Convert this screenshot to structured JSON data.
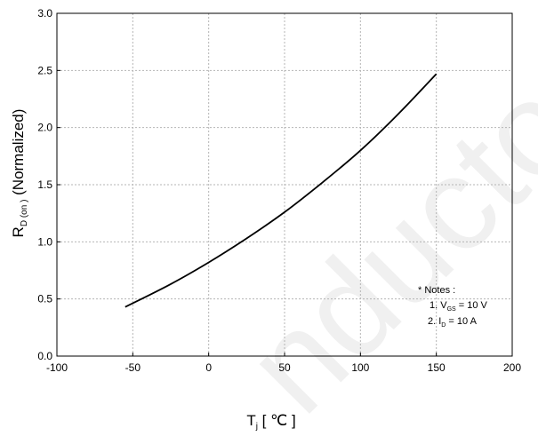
{
  "chart_data": {
    "type": "line",
    "title": "",
    "xlabel": {
      "main": "T",
      "sub": "j",
      "rest": " [ ℃ ]"
    },
    "ylabel": {
      "main": "R",
      "sub": "D (on )",
      "rest": " (Normalized)"
    },
    "xlim": [
      -100,
      200
    ],
    "ylim": [
      0.0,
      3.0
    ],
    "grid": true,
    "xticks": [
      -100,
      -50,
      0,
      50,
      100,
      150,
      200
    ],
    "xtick_labels": [
      "-100",
      "-50",
      "0",
      "50",
      "100",
      "150",
      "200"
    ],
    "yticks": [
      0.0,
      0.5,
      1.0,
      1.5,
      2.0,
      2.5,
      3.0
    ],
    "ytick_labels": [
      "0.0",
      "0.5",
      "1.0",
      "1.5",
      "2.0",
      "2.5",
      "3.0"
    ],
    "series": [
      {
        "x": [
          -55,
          -25,
          0,
          25,
          50,
          75,
          100,
          125,
          150
        ],
        "y": [
          0.43,
          0.63,
          0.82,
          1.03,
          1.26,
          1.52,
          1.8,
          2.12,
          2.47
        ],
        "color": "#000000"
      }
    ],
    "annotations": {
      "header": "* Notes :",
      "line1": {
        "prefix": "1. V",
        "sub": "GS",
        "suffix": " = 10 V"
      },
      "line2": {
        "prefix": "2. I",
        "sub": "D",
        "suffix": " = 10 A"
      }
    },
    "watermark": "nductor"
  }
}
